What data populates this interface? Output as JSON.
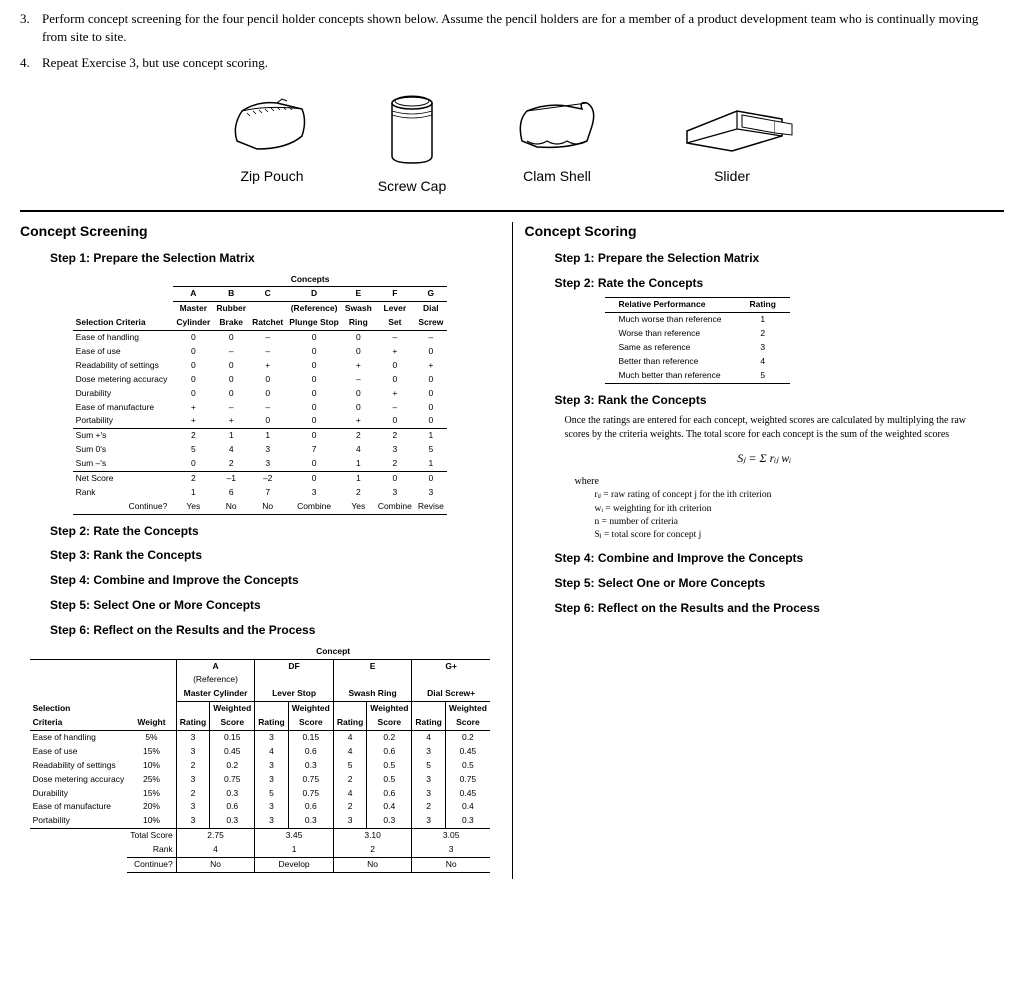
{
  "q3": {
    "num": "3.",
    "text": "Perform concept screening for the four pencil holder concepts shown below. Assume the pencil holders are for a member of a product development team who is continually moving from site to site."
  },
  "q4": {
    "num": "4.",
    "text": "Repeat Exercise 3, but use concept scoring."
  },
  "sketches": [
    {
      "label": "Zip Pouch"
    },
    {
      "label": "Screw Cap"
    },
    {
      "label": "Clam Shell"
    },
    {
      "label": "Slider"
    }
  ],
  "left": {
    "title": "Concept Screening",
    "step1": "Step 1: Prepare the Selection Matrix",
    "step2": "Step 2: Rate the Concepts",
    "step3": "Step 3: Rank the Concepts",
    "step4": "Step 4: Combine and Improve the Concepts",
    "step5": "Step 5: Select One or More Concepts",
    "step6": "Step 6: Reflect on the Results and the Process",
    "screening": {
      "concepts_hdr": "Concepts",
      "cols": [
        {
          "code": "A",
          "name1": "Master",
          "name2": "Cylinder"
        },
        {
          "code": "B",
          "name1": "Rubber",
          "name2": "Brake"
        },
        {
          "code": "C",
          "name1": "",
          "name2": "Ratchet"
        },
        {
          "code": "D",
          "name1": "(Reference)",
          "name2": "Plunge Stop"
        },
        {
          "code": "E",
          "name1": "Swash",
          "name2": "Ring"
        },
        {
          "code": "F",
          "name1": "Lever",
          "name2": "Set"
        },
        {
          "code": "G",
          "name1": "Dial",
          "name2": "Screw"
        }
      ],
      "criteria_hdr": "Selection Criteria",
      "rows": [
        {
          "label": "Ease of handling",
          "vals": [
            "0",
            "0",
            "–",
            "0",
            "0",
            "–",
            "–"
          ]
        },
        {
          "label": "Ease of use",
          "vals": [
            "0",
            "–",
            "–",
            "0",
            "0",
            "+",
            "0"
          ]
        },
        {
          "label": "Readability of settings",
          "vals": [
            "0",
            "0",
            "+",
            "0",
            "+",
            "0",
            "+"
          ]
        },
        {
          "label": "Dose metering accuracy",
          "vals": [
            "0",
            "0",
            "0",
            "0",
            "–",
            "0",
            "0"
          ]
        },
        {
          "label": "Durability",
          "vals": [
            "0",
            "0",
            "0",
            "0",
            "0",
            "+",
            "0"
          ]
        },
        {
          "label": "Ease of manufacture",
          "vals": [
            "+",
            "–",
            "–",
            "0",
            "0",
            "–",
            "0"
          ]
        },
        {
          "label": "Portability",
          "vals": [
            "+",
            "+",
            "0",
            "0",
            "+",
            "0",
            "0"
          ]
        }
      ],
      "sums": [
        {
          "label": "Sum +'s",
          "vals": [
            "2",
            "1",
            "1",
            "0",
            "2",
            "2",
            "1"
          ]
        },
        {
          "label": "Sum 0's",
          "vals": [
            "5",
            "4",
            "3",
            "7",
            "4",
            "3",
            "5"
          ]
        },
        {
          "label": "Sum –'s",
          "vals": [
            "0",
            "2",
            "3",
            "0",
            "1",
            "2",
            "1"
          ]
        }
      ],
      "net": {
        "label": "Net Score",
        "vals": [
          "2",
          "–1",
          "–2",
          "0",
          "1",
          "0",
          "0"
        ]
      },
      "rank": {
        "label": "Rank",
        "vals": [
          "1",
          "6",
          "7",
          "3",
          "2",
          "3",
          "3"
        ]
      },
      "cont": {
        "label": "Continue?",
        "vals": [
          "Yes",
          "No",
          "No",
          "Combine",
          "Yes",
          "Combine",
          "Revise"
        ]
      }
    },
    "scoring": {
      "concept_hdr": "Concept",
      "cols": [
        {
          "code": "A",
          "sub": "(Reference)",
          "name": "Master Cylinder"
        },
        {
          "code": "DF",
          "sub": "",
          "name": "Lever Stop"
        },
        {
          "code": "E",
          "sub": "",
          "name": "Swash Ring"
        },
        {
          "code": "G+",
          "sub": "",
          "name": "Dial Screw+"
        }
      ],
      "sel_hdr1": "Selection",
      "sel_hdr2": "Criteria",
      "weight_hdr": "Weight",
      "rating_hdr": "Rating",
      "ws_hdr1": "Weighted",
      "ws_hdr2": "Score",
      "rows": [
        {
          "label": "Ease of handling",
          "weight": "5%",
          "cells": [
            [
              "3",
              "0.15"
            ],
            [
              "3",
              "0.15"
            ],
            [
              "4",
              "0.2"
            ],
            [
              "4",
              "0.2"
            ]
          ]
        },
        {
          "label": "Ease of use",
          "weight": "15%",
          "cells": [
            [
              "3",
              "0.45"
            ],
            [
              "4",
              "0.6"
            ],
            [
              "4",
              "0.6"
            ],
            [
              "3",
              "0.45"
            ]
          ]
        },
        {
          "label": "Readability of settings",
          "weight": "10%",
          "cells": [
            [
              "2",
              "0.2"
            ],
            [
              "3",
              "0.3"
            ],
            [
              "5",
              "0.5"
            ],
            [
              "5",
              "0.5"
            ]
          ]
        },
        {
          "label": "Dose metering accuracy",
          "weight": "25%",
          "cells": [
            [
              "3",
              "0.75"
            ],
            [
              "3",
              "0.75"
            ],
            [
              "2",
              "0.5"
            ],
            [
              "3",
              "0.75"
            ]
          ]
        },
        {
          "label": "Durability",
          "weight": "15%",
          "cells": [
            [
              "2",
              "0.3"
            ],
            [
              "5",
              "0.75"
            ],
            [
              "4",
              "0.6"
            ],
            [
              "3",
              "0.45"
            ]
          ]
        },
        {
          "label": "Ease of manufacture",
          "weight": "20%",
          "cells": [
            [
              "3",
              "0.6"
            ],
            [
              "3",
              "0.6"
            ],
            [
              "2",
              "0.4"
            ],
            [
              "2",
              "0.4"
            ]
          ]
        },
        {
          "label": "Portability",
          "weight": "10%",
          "cells": [
            [
              "3",
              "0.3"
            ],
            [
              "3",
              "0.3"
            ],
            [
              "3",
              "0.3"
            ],
            [
              "3",
              "0.3"
            ]
          ]
        }
      ],
      "total": {
        "label": "Total Score",
        "vals": [
          "2.75",
          "3.45",
          "3.10",
          "3.05"
        ]
      },
      "rank": {
        "label": "Rank",
        "vals": [
          "4",
          "1",
          "2",
          "3"
        ]
      },
      "cont": {
        "label": "Continue?",
        "vals": [
          "No",
          "Develop",
          "No",
          "No"
        ]
      }
    }
  },
  "right": {
    "title": "Concept Scoring",
    "step1": "Step 1: Prepare the Selection Matrix",
    "step2": "Step 2: Rate the Concepts",
    "step3": "Step 3: Rank the Concepts",
    "step4": "Step 4: Combine and Improve the Concepts",
    "step5": "Step 5: Select One or More Concepts",
    "step6": "Step 6: Reflect on the Results and the Process",
    "rating_table": {
      "h1": "Relative Performance",
      "h2": "Rating",
      "rows": [
        [
          "Much worse than reference",
          "1"
        ],
        [
          "Worse than reference",
          "2"
        ],
        [
          "Same as reference",
          "3"
        ],
        [
          "Better than reference",
          "4"
        ],
        [
          "Much better than reference",
          "5"
        ]
      ]
    },
    "note": "Once the ratings are entered for each concept, weighted scores are calculated by multiplying the raw scores by the criteria weights. The total score for each concept is the sum of the weighted scores",
    "formula": "Sⱼ = Σ rᵢⱼ wᵢ",
    "where": "where",
    "defs": [
      "rᵢⱼ = raw rating of concept j for the ith criterion",
      "wᵢ = weighting for ith criterion",
      "n  = number of criteria",
      "Sⱼ = total score for concept j"
    ]
  }
}
